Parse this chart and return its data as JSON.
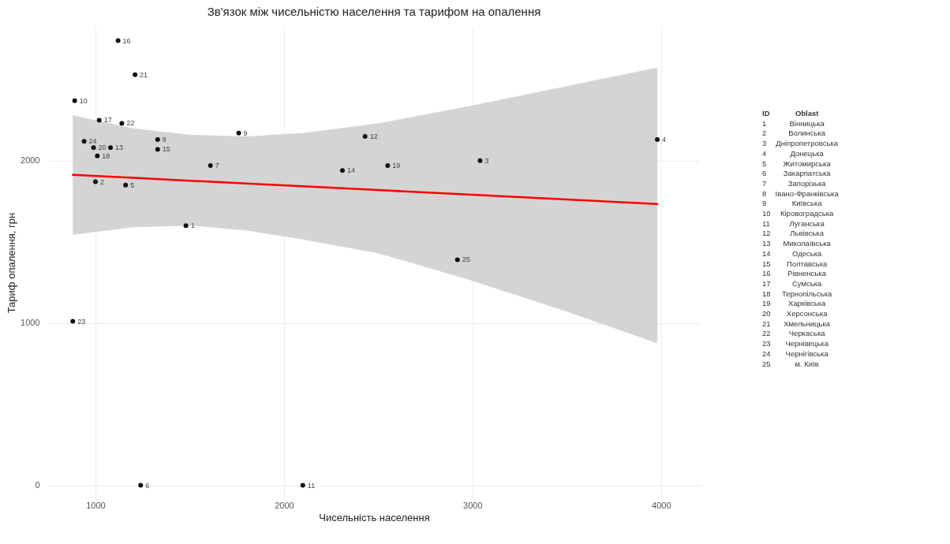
{
  "chart_data": {
    "type": "scatter",
    "title": "Зв'язок між чисельністю населення та тарифом на опалення",
    "xlabel": "Чисельність населення",
    "ylabel": "Тариф опалення, грн",
    "xlim": [
      745,
      4210
    ],
    "ylim": [
      -85,
      2830
    ],
    "xticks": [
      1000,
      2000,
      3000,
      4000
    ],
    "yticks": [
      0,
      1000,
      2000
    ],
    "grid": true,
    "series": [
      {
        "type": "line",
        "marker": "none",
        "color": "#ff0000",
        "x": [
          880,
          1200,
          1500,
          1800,
          2100,
          2500,
          3000,
          3500,
          3980
        ],
        "values": [
          1913,
          1895,
          1877,
          1860,
          1842,
          1819,
          1790,
          1761,
          1733
        ],
        "lower": [
          1544,
          1590,
          1600,
          1570,
          1515,
          1430,
          1260,
          1070,
          875
        ],
        "upper": [
          2280,
          2200,
          2160,
          2150,
          2170,
          2230,
          2340,
          2460,
          2574
        ]
      },
      {
        "marker": "circle",
        "color": "#111111",
        "x": [
          1480,
          1000,
          3040,
          3980,
          1160,
          1240,
          1610,
          1330,
          1760,
          890,
          2100,
          2430,
          1080,
          2310,
          1330,
          1120,
          1020,
          1010,
          2550,
          990,
          1210,
          1140,
          880,
          940,
          2920
        ],
        "values": [
          1600,
          1870,
          2000,
          2130,
          1850,
          0,
          1970,
          2130,
          2170,
          2370,
          0,
          2150,
          2080,
          1940,
          2070,
          2740,
          2250,
          2030,
          1970,
          2080,
          2530,
          2230,
          1010,
          2120,
          1390
        ]
      }
    ],
    "annotations": [
      {
        "text": "1",
        "x": 1480,
        "y": 1600
      },
      {
        "text": "2",
        "x": 1000,
        "y": 1870
      },
      {
        "text": "3",
        "x": 3040,
        "y": 2000
      },
      {
        "text": "4",
        "x": 3980,
        "y": 2130
      },
      {
        "text": "5",
        "x": 1160,
        "y": 1850
      },
      {
        "text": "6",
        "x": 1240,
        "y": 0
      },
      {
        "text": "7",
        "x": 1610,
        "y": 1970
      },
      {
        "text": "8",
        "x": 1330,
        "y": 2130
      },
      {
        "text": "9",
        "x": 1760,
        "y": 2170
      },
      {
        "text": "10",
        "x": 890,
        "y": 2370
      },
      {
        "text": "11",
        "x": 2100,
        "y": 0
      },
      {
        "text": "12",
        "x": 2430,
        "y": 2150
      },
      {
        "text": "13",
        "x": 1080,
        "y": 2080
      },
      {
        "text": "14",
        "x": 2310,
        "y": 1940
      },
      {
        "text": "15",
        "x": 1330,
        "y": 2070
      },
      {
        "text": "16",
        "x": 1120,
        "y": 2740
      },
      {
        "text": "17",
        "x": 1020,
        "y": 2250
      },
      {
        "text": "18",
        "x": 1010,
        "y": 2030
      },
      {
        "text": "19",
        "x": 2550,
        "y": 1970
      },
      {
        "text": "20",
        "x": 990,
        "y": 2080
      },
      {
        "text": "21",
        "x": 1210,
        "y": 2530
      },
      {
        "text": "22",
        "x": 1140,
        "y": 2230
      },
      {
        "text": "23",
        "x": 880,
        "y": 1010
      },
      {
        "text": "24",
        "x": 940,
        "y": 2120
      },
      {
        "text": "25",
        "x": 2920,
        "y": 1390
      },
      "ID\tOblast",
      "1\tВінницька",
      "2\tВолинська",
      "3\tДніпропетровська",
      "4\tДонецька",
      "5\tЖитомирська",
      "6\tЗакарпатська",
      "7\tЗапорізька",
      "8\tІвано-Франківська",
      "9\tКиївська",
      "10\tКіровоградська",
      "11\tЛуганська",
      "12\tЛьвівська",
      "13\tМиколаївська",
      "14\tОдеська",
      "15\tПолтавська",
      "16\tРівненська",
      "17\tСумська",
      "18\tТернопільська",
      "19\tХарківська",
      "20\tХерсонська",
      "21\tХмельницька",
      "22\tЧеркаська",
      "23\tЧернівецька",
      "24\tЧернігівська",
      "25\tм. Київ"
    ]
  }
}
